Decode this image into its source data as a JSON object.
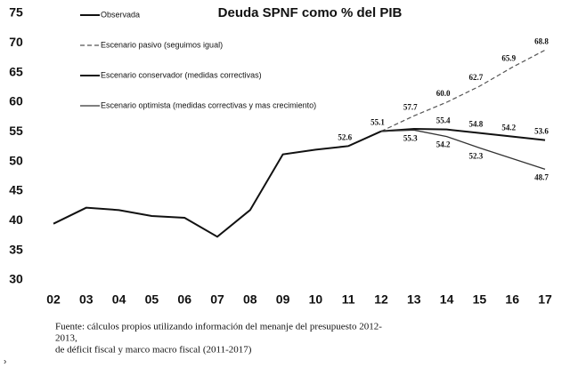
{
  "chart_data": {
    "type": "line",
    "title": "Deuda SPNF como % del PIB",
    "categories": [
      "02",
      "03",
      "04",
      "05",
      "06",
      "07",
      "08",
      "09",
      "10",
      "11",
      "12",
      "13",
      "14",
      "15",
      "16",
      "17"
    ],
    "ylim": [
      30,
      75
    ],
    "yticks": [
      30,
      35,
      40,
      45,
      50,
      55,
      60,
      65,
      70,
      75
    ],
    "grid": false,
    "legend": "upper left",
    "series": [
      {
        "name": "Observada",
        "color": "#111111",
        "style": "solid",
        "values": [
          39.5,
          42.2,
          41.8,
          40.8,
          40.5,
          37.3,
          41.8,
          51.2,
          52.0,
          52.6,
          55.1,
          null,
          null,
          null,
          null,
          null
        ],
        "value_labels": [
          null,
          null,
          null,
          null,
          null,
          null,
          null,
          null,
          null,
          "52.6",
          "55.1",
          null,
          null,
          null,
          null,
          null
        ]
      },
      {
        "name": "Escenario pasivo (seguimos igual)",
        "color": "#555555",
        "style": "dashed",
        "values": [
          null,
          null,
          null,
          null,
          null,
          null,
          null,
          null,
          null,
          null,
          55.1,
          57.7,
          60.0,
          62.7,
          65.9,
          68.8
        ],
        "value_labels": [
          null,
          null,
          null,
          null,
          null,
          null,
          null,
          null,
          null,
          null,
          null,
          "57.7",
          "60.0",
          "62.7",
          "65.9",
          "68.8"
        ]
      },
      {
        "name": "Escenario conservador (medidas correctivas)",
        "color": "#111111",
        "style": "solid",
        "values": [
          null,
          null,
          null,
          null,
          null,
          null,
          null,
          null,
          null,
          null,
          55.1,
          55.5,
          55.4,
          54.8,
          54.2,
          53.6
        ],
        "value_labels": [
          null,
          null,
          null,
          null,
          null,
          null,
          null,
          null,
          null,
          null,
          null,
          null,
          "55.4",
          "54.8",
          "54.2",
          "53.6"
        ]
      },
      {
        "name": "Escenario optimista (medidas correctivas y mas crecimiento)",
        "color": "#333333",
        "style": "thin",
        "values": [
          null,
          null,
          null,
          null,
          null,
          null,
          null,
          null,
          null,
          null,
          55.1,
          55.3,
          54.2,
          52.3,
          50.5,
          48.7
        ],
        "value_labels": [
          null,
          null,
          null,
          null,
          null,
          null,
          null,
          null,
          null,
          null,
          null,
          "55.3",
          "54.2",
          "52.3",
          null,
          "48.7"
        ]
      }
    ]
  },
  "source": [
    "Fuente: cálculos propios utilizando información del menanje del presupuesto 2012-",
    "2013,",
    "de déficit fiscal  y marco macro fiscal (2011-2017)"
  ]
}
